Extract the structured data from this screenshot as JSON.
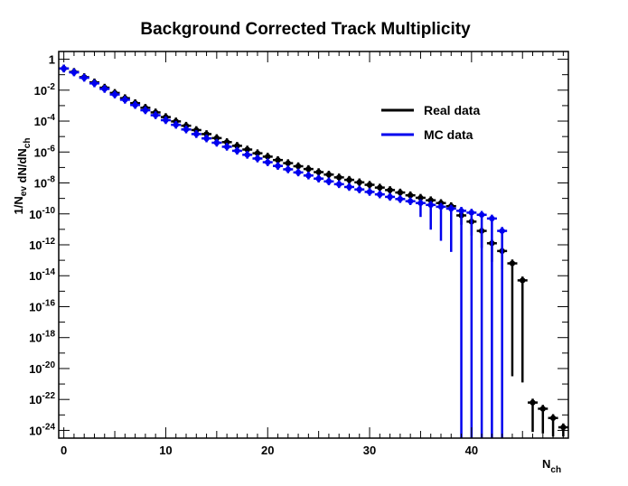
{
  "chart_data": {
    "type": "scatter",
    "title": "Background Corrected Track Multiplicity",
    "xlabel": "N_ch",
    "ylabel": "1/N_ev dN/dN_ch",
    "xlim": [
      -0.5,
      49.5
    ],
    "ylim_log10": [
      -24.5,
      0.5
    ],
    "yscale": "log",
    "grid": false,
    "legend_position": "upper-right",
    "x_ticks": [
      0,
      10,
      20,
      30,
      40
    ],
    "y_ticks": [
      {
        "exp": 0,
        "label": "1"
      },
      {
        "exp": -2,
        "label": "10^-2"
      },
      {
        "exp": -4,
        "label": "10^-4"
      },
      {
        "exp": -6,
        "label": "10^-6"
      },
      {
        "exp": -8,
        "label": "10^-8"
      },
      {
        "exp": -10,
        "label": "10^-10"
      },
      {
        "exp": -12,
        "label": "10^-12"
      },
      {
        "exp": -14,
        "label": "10^-14"
      },
      {
        "exp": -16,
        "label": "10^-16"
      },
      {
        "exp": -18,
        "label": "10^-18"
      },
      {
        "exp": -20,
        "label": "10^-20"
      },
      {
        "exp": -22,
        "label": "10^-22"
      },
      {
        "exp": -24,
        "label": "10^-24"
      }
    ],
    "series": [
      {
        "name": "Real data",
        "color": "#000000",
        "points": [
          {
            "x": 0,
            "log10y": -0.6
          },
          {
            "x": 1,
            "log10y": -0.82
          },
          {
            "x": 2,
            "log10y": -1.16
          },
          {
            "x": 3,
            "log10y": -1.5
          },
          {
            "x": 4,
            "log10y": -1.84
          },
          {
            "x": 5,
            "log10y": -2.18
          },
          {
            "x": 6,
            "log10y": -2.52
          },
          {
            "x": 7,
            "log10y": -2.84
          },
          {
            "x": 8,
            "log10y": -3.14
          },
          {
            "x": 9,
            "log10y": -3.44
          },
          {
            "x": 10,
            "log10y": -3.74
          },
          {
            "x": 11,
            "log10y": -4.02
          },
          {
            "x": 12,
            "log10y": -4.3
          },
          {
            "x": 13,
            "log10y": -4.58
          },
          {
            "x": 14,
            "log10y": -4.84
          },
          {
            "x": 15,
            "log10y": -5.1
          },
          {
            "x": 16,
            "log10y": -5.36
          },
          {
            "x": 17,
            "log10y": -5.6
          },
          {
            "x": 18,
            "log10y": -5.84
          },
          {
            "x": 19,
            "log10y": -6.08
          },
          {
            "x": 20,
            "log10y": -6.3
          },
          {
            "x": 21,
            "log10y": -6.52
          },
          {
            "x": 22,
            "log10y": -6.72
          },
          {
            "x": 23,
            "log10y": -6.92
          },
          {
            "x": 24,
            "log10y": -7.1
          },
          {
            "x": 25,
            "log10y": -7.3
          },
          {
            "x": 26,
            "log10y": -7.46
          },
          {
            "x": 27,
            "log10y": -7.64
          },
          {
            "x": 28,
            "log10y": -7.8
          },
          {
            "x": 29,
            "log10y": -7.96
          },
          {
            "x": 30,
            "log10y": -8.12
          },
          {
            "x": 31,
            "log10y": -8.3
          },
          {
            "x": 32,
            "log10y": -8.46
          },
          {
            "x": 33,
            "log10y": -8.62
          },
          {
            "x": 34,
            "log10y": -8.8
          },
          {
            "x": 35,
            "log10y": -8.96
          },
          {
            "x": 36,
            "log10y": -9.12
          },
          {
            "x": 37,
            "log10y": -9.3
          },
          {
            "x": 38,
            "log10y": -9.5
          },
          {
            "x": 39,
            "log10y": -10.1,
            "err_low": 0.6
          },
          {
            "x": 40,
            "log10y": -10.5,
            "err_low": 0.9
          },
          {
            "x": 41,
            "log10y": -11.1,
            "err_low": 1.1
          },
          {
            "x": 42,
            "log10y": -11.9,
            "err_low": 1.2
          },
          {
            "x": 43,
            "log10y": -12.4,
            "err_low": 1.2
          },
          {
            "x": 44,
            "log10y": -13.2,
            "err_low": 7.3
          },
          {
            "x": 45,
            "log10y": -14.3,
            "err_low": 6.6
          },
          {
            "x": 46,
            "log10y": -22.2,
            "err_low": 1.9
          },
          {
            "x": 47,
            "log10y": -22.6,
            "err_low": 1.6
          },
          {
            "x": 48,
            "log10y": -23.2,
            "err_low": 1.2
          },
          {
            "x": 49,
            "log10y": -23.8,
            "err_low": 0.6
          }
        ]
      },
      {
        "name": "MC data",
        "color": "#0000ee",
        "points": [
          {
            "x": 0,
            "log10y": -0.6
          },
          {
            "x": 1,
            "log10y": -0.85
          },
          {
            "x": 2,
            "log10y": -1.2
          },
          {
            "x": 3,
            "log10y": -1.56
          },
          {
            "x": 4,
            "log10y": -1.92
          },
          {
            "x": 5,
            "log10y": -2.28
          },
          {
            "x": 6,
            "log10y": -2.62
          },
          {
            "x": 7,
            "log10y": -2.96
          },
          {
            "x": 8,
            "log10y": -3.3
          },
          {
            "x": 9,
            "log10y": -3.62
          },
          {
            "x": 10,
            "log10y": -3.94
          },
          {
            "x": 11,
            "log10y": -4.24
          },
          {
            "x": 12,
            "log10y": -4.54
          },
          {
            "x": 13,
            "log10y": -4.84
          },
          {
            "x": 14,
            "log10y": -5.12
          },
          {
            "x": 15,
            "log10y": -5.4
          },
          {
            "x": 16,
            "log10y": -5.66
          },
          {
            "x": 17,
            "log10y": -5.92
          },
          {
            "x": 18,
            "log10y": -6.18
          },
          {
            "x": 19,
            "log10y": -6.42
          },
          {
            "x": 20,
            "log10y": -6.66
          },
          {
            "x": 21,
            "log10y": -6.9
          },
          {
            "x": 22,
            "log10y": -7.12
          },
          {
            "x": 23,
            "log10y": -7.32
          },
          {
            "x": 24,
            "log10y": -7.52
          },
          {
            "x": 25,
            "log10y": -7.72
          },
          {
            "x": 26,
            "log10y": -7.9
          },
          {
            "x": 27,
            "log10y": -8.08
          },
          {
            "x": 28,
            "log10y": -8.26
          },
          {
            "x": 29,
            "log10y": -8.42
          },
          {
            "x": 30,
            "log10y": -8.58
          },
          {
            "x": 31,
            "log10y": -8.74
          },
          {
            "x": 32,
            "log10y": -8.9
          },
          {
            "x": 33,
            "log10y": -9.04
          },
          {
            "x": 34,
            "log10y": -9.18
          },
          {
            "x": 35,
            "log10y": -9.3,
            "err_low": 0.9
          },
          {
            "x": 36,
            "log10y": -9.42,
            "err_low": 1.6
          },
          {
            "x": 37,
            "log10y": -9.54,
            "err_low": 2.2
          },
          {
            "x": 38,
            "log10y": -9.66,
            "err_low": 2.8
          },
          {
            "x": 39,
            "log10y": -9.8,
            "err_low": 15.0
          },
          {
            "x": 40,
            "log10y": -9.92,
            "err_low": 15.0
          },
          {
            "x": 41,
            "log10y": -10.06,
            "err_low": 15.0
          },
          {
            "x": 42,
            "log10y": -10.3,
            "err_low": 15.0
          },
          {
            "x": 43,
            "log10y": -11.1,
            "err_low": 15.0
          }
        ]
      }
    ]
  }
}
